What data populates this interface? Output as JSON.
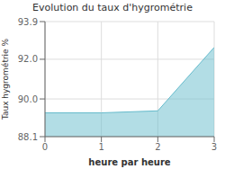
{
  "chart_data": {
    "type": "area",
    "title": "Evolution du taux d'hygrométrie",
    "xlabel": "heure par heure",
    "ylabel": "Taux hygrométrie %",
    "x": [
      0,
      1,
      2,
      3
    ],
    "values": [
      89.3,
      89.3,
      89.4,
      92.6
    ],
    "color": "#66bbcc",
    "xlim": [
      0,
      3
    ],
    "ylim": [
      88.1,
      93.9
    ],
    "xticks": [
      0,
      1,
      2,
      3
    ],
    "yticks": [
      88.1,
      {
        "value": 90.0,
        "label": "90.0"
      },
      {
        "value": 92.0,
        "label": "92.0"
      },
      93.9
    ],
    "grid": true
  }
}
